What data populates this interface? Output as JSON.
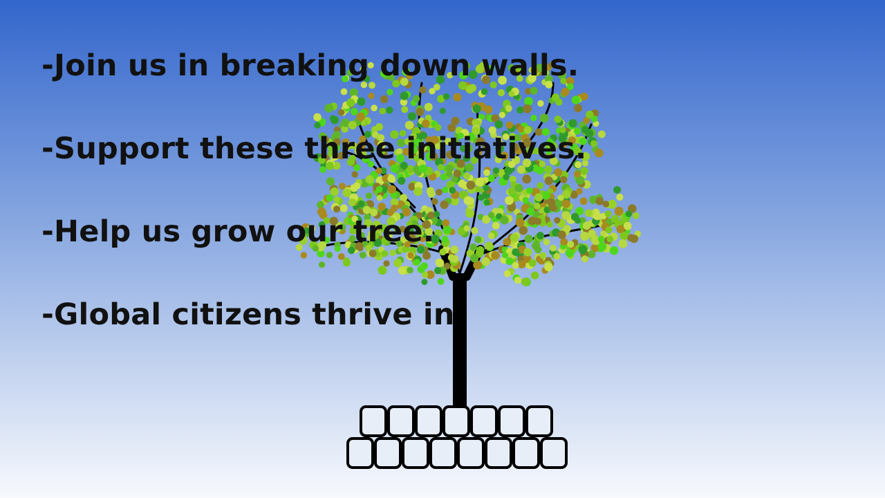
{
  "slide": {
    "lines": [
      "-Join us in breaking down walls.",
      "-Support these three initiatives.",
      "-Help us grow our tree.",
      "-Global citizens thrive in"
    ]
  },
  "graphic": {
    "subject": "tree-on-brick-wall",
    "leaf_colors": [
      "#7ec81e",
      "#4fd61a",
      "#9ad02a",
      "#2f9a2c",
      "#a88a1e",
      "#b7d840",
      "#5fb52a",
      "#c8e04a",
      "#8b7a2a"
    ],
    "trunk_color": "#000000",
    "brick_fill": "#e8eef8"
  }
}
